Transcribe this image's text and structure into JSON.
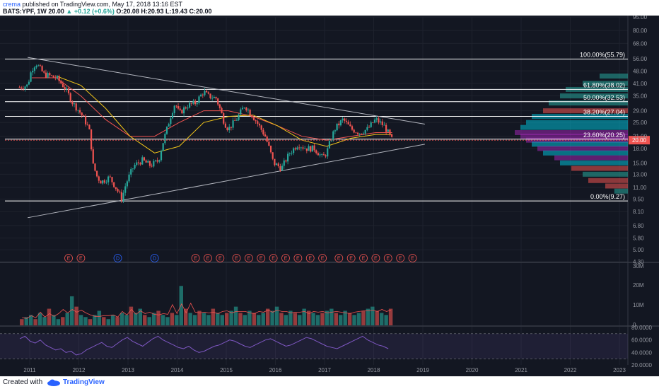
{
  "header": {
    "user": "crema",
    "published": "published on TradingView.com, May 17, 2018 13:16 EST",
    "symbol": "BATS:YPF, 1W",
    "last": "20.00",
    "change": "+0.12 (+0.6%)",
    "ohlc": "O:20.08 H:20.93 L:19.43 C:20.00"
  },
  "footer": {
    "created_with": "Created with",
    "brand": "TradingView"
  },
  "colors": {
    "background": "#131722",
    "grid": "#2a2e39",
    "up": "#26a69a",
    "down": "#ef5350",
    "sma_short": "#ef5350",
    "sma_long": "#f0c419",
    "rsi": "#7e57c2"
  },
  "chart_data": [
    {
      "type": "line",
      "title": "",
      "y_axis_ticks": [
        "95.00",
        "80.00",
        "68.00",
        "56.00",
        "48.00",
        "41.00",
        "35.00",
        "29.00",
        "25.00",
        "21.00",
        "18.00",
        "15.00",
        "13.00",
        "11.00",
        "9.50",
        "8.10",
        "6.80",
        "5.80",
        "5.00",
        "4.30"
      ],
      "x_axis_ticks": [
        "2011",
        "2012",
        "2013",
        "2014",
        "2015",
        "2016",
        "2017",
        "2018",
        "2019",
        "2020",
        "2021",
        "2022",
        "2023"
      ],
      "scale": "log",
      "last_price_label": "20.00",
      "price_path": [
        [
          "2010-10",
          39
        ],
        [
          "2010-12",
          40
        ],
        [
          "2011-01",
          49
        ],
        [
          "2011-02",
          53
        ],
        [
          "2011-04",
          46
        ],
        [
          "2011-07",
          44
        ],
        [
          "2011-09",
          39
        ],
        [
          "2011-11",
          32
        ],
        [
          "2012-01",
          28
        ],
        [
          "2012-03",
          23
        ],
        [
          "2012-04",
          14.5
        ],
        [
          "2012-05",
          12.5
        ],
        [
          "2012-06",
          11.8
        ],
        [
          "2012-08",
          12.5
        ],
        [
          "2012-10",
          10.5
        ],
        [
          "2012-11",
          9.5
        ],
        [
          "2012-12",
          11.5
        ],
        [
          "2013-02",
          14.5
        ],
        [
          "2013-04",
          15.5
        ],
        [
          "2013-06",
          14.5
        ],
        [
          "2013-08",
          15.5
        ],
        [
          "2013-10",
          23
        ],
        [
          "2013-12",
          32
        ],
        [
          "2014-01",
          28
        ],
        [
          "2014-03",
          31
        ],
        [
          "2014-05",
          32
        ],
        [
          "2014-07",
          37
        ],
        [
          "2014-08",
          35
        ],
        [
          "2014-10",
          34
        ],
        [
          "2014-12",
          25
        ],
        [
          "2015-01",
          23
        ],
        [
          "2015-03",
          26
        ],
        [
          "2015-05",
          31
        ],
        [
          "2015-06",
          29
        ],
        [
          "2015-08",
          25
        ],
        [
          "2015-10",
          21
        ],
        [
          "2015-12",
          15
        ],
        [
          "2016-02",
          14
        ],
        [
          "2016-04",
          17
        ],
        [
          "2016-06",
          19
        ],
        [
          "2016-08",
          18
        ],
        [
          "2016-10",
          18
        ],
        [
          "2016-12",
          16
        ],
        [
          "2017-01",
          17
        ],
        [
          "2017-03",
          23
        ],
        [
          "2017-05",
          26
        ],
        [
          "2017-07",
          23
        ],
        [
          "2017-09",
          22
        ],
        [
          "2017-11",
          23
        ],
        [
          "2018-01",
          26
        ],
        [
          "2018-03",
          24
        ],
        [
          "2018-05",
          20
        ]
      ],
      "moving_averages": [
        {
          "color": "#ef5350",
          "path": [
            [
              "2011-01",
              44
            ],
            [
              "2011-07",
              44
            ],
            [
              "2012-01",
              35
            ],
            [
              "2012-07",
              26
            ],
            [
              "2013-01",
              21
            ],
            [
              "2013-07",
              21
            ],
            [
              "2014-01",
              25
            ],
            [
              "2014-07",
              29
            ],
            [
              "2015-01",
              29
            ],
            [
              "2015-07",
              27
            ],
            [
              "2016-01",
              24
            ],
            [
              "2016-07",
              21
            ],
            [
              "2017-01",
              20
            ],
            [
              "2017-07",
              21
            ],
            [
              "2018-01",
              22
            ],
            [
              "2018-05",
              22
            ]
          ]
        },
        {
          "color": "#f0c419",
          "path": [
            [
              "2011-07",
              45
            ],
            [
              "2012-01",
              40
            ],
            [
              "2012-07",
              30
            ],
            [
              "2013-01",
              21
            ],
            [
              "2013-07",
              17
            ],
            [
              "2014-01",
              18.5
            ],
            [
              "2014-07",
              25
            ],
            [
              "2015-01",
              27
            ],
            [
              "2015-07",
              27.5
            ],
            [
              "2016-01",
              24
            ],
            [
              "2016-07",
              20
            ],
            [
              "2017-01",
              18.5
            ],
            [
              "2017-07",
              20.5
            ],
            [
              "2018-01",
              21.5
            ],
            [
              "2018-05",
              21.5
            ]
          ]
        }
      ],
      "trendlines": [
        {
          "from": [
            "2010-12",
            57
          ],
          "to": [
            "2019-01",
            24.5
          ]
        },
        {
          "from": [
            "2010-12",
            7.5
          ],
          "to": [
            "2019-01",
            19
          ]
        }
      ],
      "fibonacci": [
        {
          "label": "100.00%(55.79)",
          "price": 55.79
        },
        {
          "label": "61.80%(38.02)",
          "price": 38.02
        },
        {
          "label": "50.00%(32.53)",
          "price": 32.53
        },
        {
          "label": "38.20%(27.04)",
          "price": 27.04
        },
        {
          "label": "23.60%(20.25)",
          "price": 20.25
        },
        {
          "label": "0.00%(9.27)",
          "price": 9.27
        }
      ],
      "events": [
        {
          "date": "2011-10",
          "label": "E"
        },
        {
          "date": "2012-01",
          "label": "E"
        },
        {
          "date": "2012-10",
          "label": "D"
        },
        {
          "date": "2013-07",
          "label": "D"
        },
        {
          "date": "2014-05",
          "label": "E"
        },
        {
          "date": "2014-08",
          "label": "E"
        },
        {
          "date": "2014-11",
          "label": "E"
        },
        {
          "date": "2015-03",
          "label": "E"
        },
        {
          "date": "2015-06",
          "label": "E"
        },
        {
          "date": "2015-09",
          "label": "E"
        },
        {
          "date": "2015-12",
          "label": "E"
        },
        {
          "date": "2016-03",
          "label": "E"
        },
        {
          "date": "2016-06",
          "label": "E"
        },
        {
          "date": "2016-09",
          "label": "E"
        },
        {
          "date": "2016-12",
          "label": "E"
        },
        {
          "date": "2017-04",
          "label": "E"
        },
        {
          "date": "2017-07",
          "label": "E"
        },
        {
          "date": "2017-10",
          "label": "E"
        },
        {
          "date": "2018-01",
          "label": "E"
        },
        {
          "date": "2018-04",
          "label": "E"
        },
        {
          "date": "2018-07",
          "label": "E"
        },
        {
          "date": "2018-10",
          "label": "E"
        }
      ],
      "volume_profile": [
        {
          "price": 45,
          "volume": 0.25,
          "color": "#26a69a"
        },
        {
          "price": 41,
          "volume": 0.4,
          "color": "#26a69a"
        },
        {
          "price": 38,
          "volume": 0.55,
          "color": "#26a69a"
        },
        {
          "price": 35,
          "volume": 0.6,
          "color": "#26a69a"
        },
        {
          "price": 32,
          "volume": 0.7,
          "color": "#26a69a"
        },
        {
          "price": 29,
          "volume": 0.75,
          "color": "#ef5350"
        },
        {
          "price": 27,
          "volume": 0.85,
          "color": "#00bcd4"
        },
        {
          "price": 25,
          "volume": 0.9,
          "color": "#00bcd4"
        },
        {
          "price": 23.5,
          "volume": 0.95,
          "color": "#00bcd4"
        },
        {
          "price": 22,
          "volume": 1.0,
          "color": "#9c27b0"
        },
        {
          "price": 21,
          "volume": 0.95,
          "color": "#9c27b0"
        },
        {
          "price": 20,
          "volume": 0.9,
          "color": "#9c27b0"
        },
        {
          "price": 19,
          "volume": 0.85,
          "color": "#00bcd4"
        },
        {
          "price": 18,
          "volume": 0.8,
          "color": "#9c27b0"
        },
        {
          "price": 17,
          "volume": 0.75,
          "color": "#00bcd4"
        },
        {
          "price": 16,
          "volume": 0.65,
          "color": "#9c27b0"
        },
        {
          "price": 15,
          "volume": 0.6,
          "color": "#00bcd4"
        },
        {
          "price": 14,
          "volume": 0.5,
          "color": "#ef5350"
        },
        {
          "price": 13,
          "volume": 0.4,
          "color": "#26a69a"
        },
        {
          "price": 12,
          "volume": 0.35,
          "color": "#ef5350"
        },
        {
          "price": 11.2,
          "volume": 0.2,
          "color": "#ef5350"
        },
        {
          "price": 10.5,
          "volume": 0.12,
          "color": "#26a69a"
        }
      ]
    },
    {
      "type": "bar",
      "title": "",
      "y_axis_ticks": [
        "30M",
        "20M",
        "10M",
        "0"
      ],
      "ylim": [
        0,
        30000000
      ],
      "series": [
        {
          "values": [
            3,
            4,
            5,
            3,
            6,
            4,
            8,
            5,
            3,
            4,
            6,
            14,
            9,
            5,
            4,
            3,
            5,
            7,
            4,
            3,
            5,
            4,
            6,
            5,
            9,
            6,
            8,
            5,
            4,
            6,
            7,
            5,
            4,
            6,
            5,
            19,
            8,
            6,
            5,
            7,
            6,
            5,
            8,
            6,
            5,
            6,
            7,
            9,
            6,
            5,
            7,
            6,
            5,
            6,
            8,
            7,
            9,
            6,
            5,
            7,
            6,
            5,
            8,
            7,
            6,
            5,
            6,
            7,
            8,
            6,
            5,
            7,
            6,
            5,
            6,
            7,
            8,
            9,
            7,
            6,
            5,
            8
          ]
        }
      ]
    },
    {
      "type": "line",
      "title": "",
      "y_axis_ticks": [
        "80.0000",
        "60.0000",
        "40.0000",
        "20.0000"
      ],
      "ylim": [
        20,
        80
      ],
      "bands": [
        70,
        30
      ],
      "series": [
        {
          "values": [
            62,
            66,
            58,
            55,
            60,
            52,
            48,
            44,
            46,
            40,
            42,
            36,
            38,
            44,
            48,
            52,
            56,
            50,
            48,
            54,
            60,
            64,
            58,
            54,
            50,
            56,
            62,
            66,
            60,
            56,
            52,
            48,
            46,
            50,
            44,
            40,
            42,
            46,
            50,
            52,
            56,
            60,
            58,
            54,
            50,
            48,
            52,
            56,
            60,
            62,
            58,
            54,
            50,
            52,
            56,
            60,
            64,
            62,
            58,
            54,
            50,
            48,
            46,
            50,
            54,
            58,
            62,
            66,
            60,
            56,
            52,
            50,
            46
          ]
        }
      ]
    }
  ]
}
